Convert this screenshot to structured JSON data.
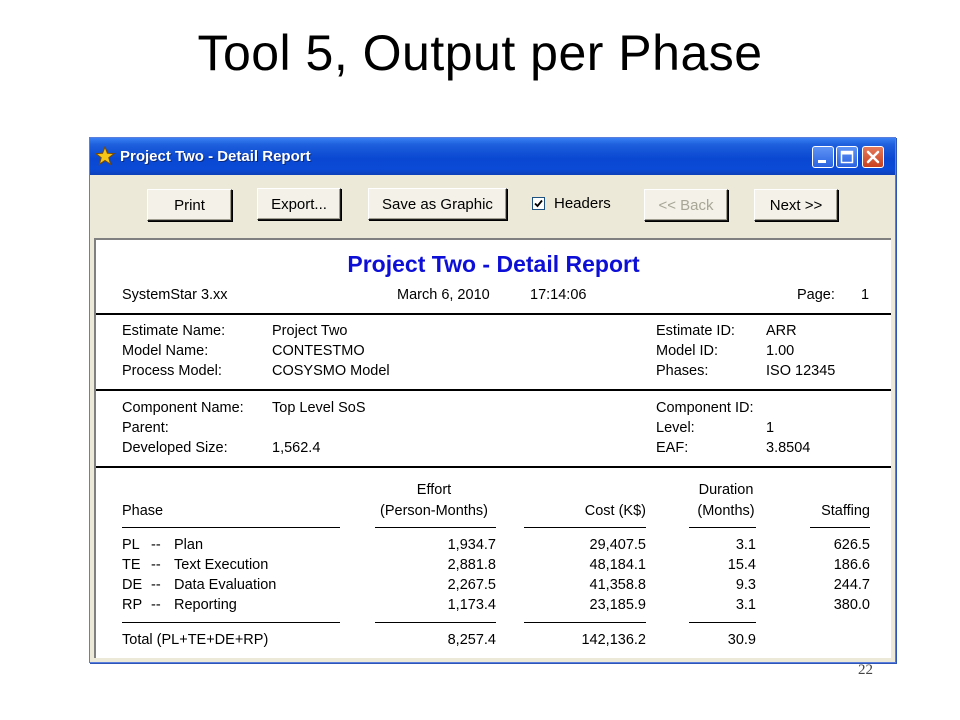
{
  "slide": {
    "title": "Tool 5, Output per Phase",
    "page_number": "22"
  },
  "window": {
    "title": "Project Two - Detail Report",
    "icon": "star-icon",
    "controls": [
      "minimize-icon",
      "maximize-icon",
      "close-icon"
    ]
  },
  "toolbar": {
    "print_label": "Print",
    "export_label": "Export...",
    "save_graphic_label": "Save as Graphic",
    "headers_label": "Headers",
    "headers_checked": true,
    "back_label": "<< Back",
    "back_enabled": false,
    "next_label": "Next >>"
  },
  "report": {
    "heading": "Project Two - Detail Report",
    "heading_color": "#0d0fd6",
    "header_row": {
      "tool": "SystemStar 3.xx",
      "date": "March 6, 2010",
      "time": "17:14:06",
      "page_label": "Page:",
      "page_value": "1"
    },
    "estimate": {
      "name_label": "Estimate Name:",
      "name_value": "Project Two",
      "model_label": "Model Name:",
      "model_value": "CONTESTMO",
      "process_label": "Process Model:",
      "process_value": "COSYSMO Model",
      "id_label": "Estimate ID:",
      "id_value": "ARR",
      "model_id_label": "Model ID:",
      "model_id_value": "1.00",
      "phases_label": "Phases:",
      "phases_value": "ISO 12345"
    },
    "component": {
      "name_label": "Component Name:",
      "name_value": "Top Level SoS",
      "parent_label": "Parent:",
      "parent_value": "",
      "size_label": "Developed Size:",
      "size_value": "1,562.4",
      "id_label": "Component ID:",
      "id_value": "",
      "level_label": "Level:",
      "level_value": "1",
      "eaf_label": "EAF:",
      "eaf_value": "3.8504"
    },
    "table": {
      "col_phase": "Phase",
      "col_effort_1": "Effort",
      "col_effort_2": "(Person-Months)",
      "col_cost": "Cost (K$)",
      "col_duration_1": "Duration",
      "col_duration_2": "(Months)",
      "col_staffing": "Staffing",
      "rows": [
        {
          "code": "PL",
          "sep": "--",
          "name": "Plan",
          "effort": "1,934.7",
          "cost": "29,407.5",
          "duration": "3.1",
          "staffing": "626.5"
        },
        {
          "code": "TE",
          "sep": "--",
          "name": "Text Execution",
          "effort": "2,881.8",
          "cost": "48,184.1",
          "duration": "15.4",
          "staffing": "186.6"
        },
        {
          "code": "DE",
          "sep": "--",
          "name": "Data Evaluation",
          "effort": "2,267.5",
          "cost": "41,358.8",
          "duration": "9.3",
          "staffing": "244.7"
        },
        {
          "code": "RP",
          "sep": "--",
          "name": "Reporting",
          "effort": "1,173.4",
          "cost": "23,185.9",
          "duration": "3.1",
          "staffing": "380.0"
        }
      ],
      "total": {
        "label": "Total (PL+TE+DE+RP)",
        "effort": "8,257.4",
        "cost": "142,136.2",
        "duration": "30.9"
      }
    }
  }
}
